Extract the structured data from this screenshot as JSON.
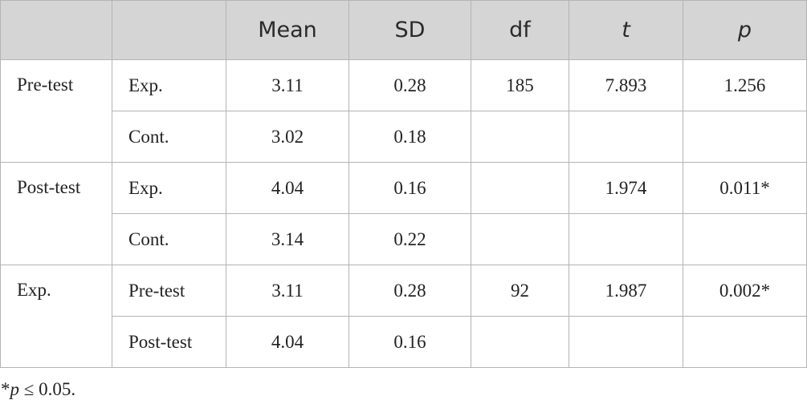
{
  "table": {
    "columns": [
      "Mean",
      "SD",
      "df",
      "t",
      "p"
    ],
    "groups": [
      {
        "label": "Pre-test",
        "rows": [
          {
            "label": "Exp.",
            "cells": [
              "3.11",
              "0.28",
              "185",
              "7.893",
              "1.256"
            ]
          },
          {
            "label": "Cont.",
            "cells": [
              "3.02",
              "0.18",
              null,
              null,
              null
            ]
          }
        ]
      },
      {
        "label": "Post-test",
        "rows": [
          {
            "label": "Exp.",
            "cells": [
              "4.04",
              "0.16",
              null,
              "1.974",
              "0.011*"
            ]
          },
          {
            "label": "Cont.",
            "cells": [
              "3.14",
              "0.22",
              null,
              null,
              null
            ]
          }
        ]
      },
      {
        "label": "Exp.",
        "rows": [
          {
            "label": "Pre-test",
            "cells": [
              "3.11",
              "0.28",
              "92",
              "1.987",
              "0.002*"
            ]
          },
          {
            "label": "Post-test",
            "cells": [
              "4.04",
              "0.16",
              null,
              null,
              null
            ]
          }
        ]
      }
    ]
  },
  "footnote": {
    "marker": "*",
    "symbol": "p",
    "text": " ≤ 0.05."
  }
}
